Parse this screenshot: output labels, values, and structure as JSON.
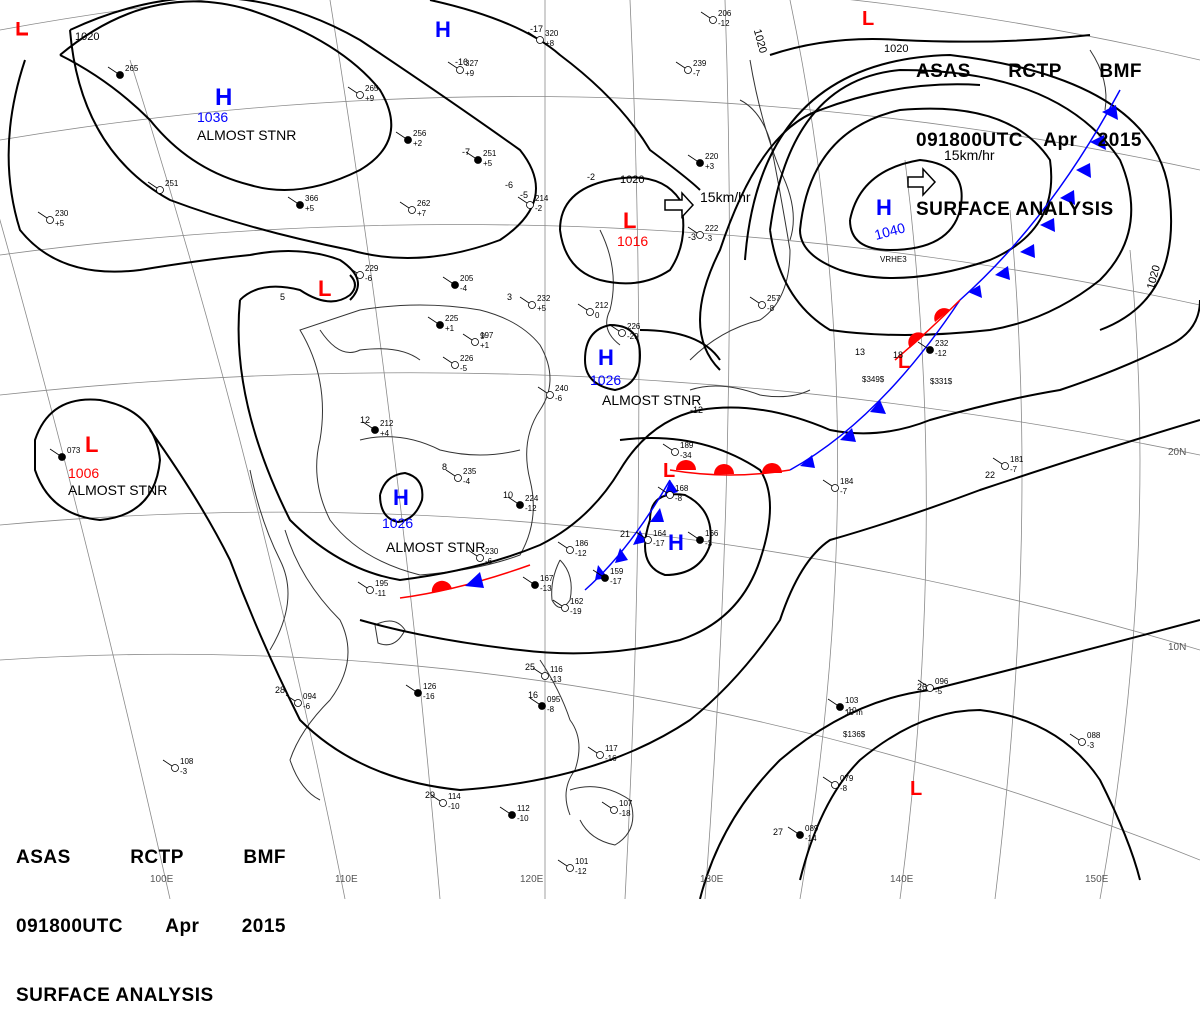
{
  "header": {
    "agency": "ASAS",
    "station": "RCTP",
    "office": "BMF",
    "datetime": "091800UTC",
    "month": "Apr",
    "year": "2015",
    "product": "SURFACE ANALYSIS"
  },
  "colors": {
    "high": "#0000ff",
    "low": "#ff0000",
    "isobar": "#000000",
    "grid": "#777777",
    "coast": "#333333",
    "cold_front": "#0000ff",
    "warm_front": "#ff0000"
  },
  "isobar_labels": {
    "a": "1020",
    "b": "1020",
    "c": "1020",
    "d": "1020",
    "e": "1020"
  },
  "lon_labels": [
    "100E",
    "110E",
    "120E",
    "130E",
    "140E",
    "150E"
  ],
  "lat_labels": [
    "20N",
    "10N"
  ],
  "systems": [
    {
      "type": "H",
      "pressure": "1036",
      "note": "ALMOST STNR"
    },
    {
      "type": "H",
      "pressure": "",
      "note": ""
    },
    {
      "type": "L",
      "pressure": "1016",
      "note": ""
    },
    {
      "type": "L",
      "pressure": "",
      "note": ""
    },
    {
      "type": "H",
      "pressure": "1040",
      "note": ""
    },
    {
      "type": "H",
      "pressure": "1026",
      "note": "ALMOST STNR"
    },
    {
      "type": "L",
      "pressure": "1006",
      "note": "ALMOST STNR"
    },
    {
      "type": "H",
      "pressure": "1026",
      "note": "ALMOST STNR"
    },
    {
      "type": "H",
      "pressure": "",
      "note": ""
    },
    {
      "type": "L",
      "pressure": "",
      "note": ""
    },
    {
      "type": "L",
      "pressure": "",
      "note": ""
    },
    {
      "type": "L",
      "pressure": "",
      "note": ""
    },
    {
      "type": "L",
      "pressure": "",
      "note": ""
    }
  ],
  "motion_labels": {
    "low_center": "15km/hr",
    "high_east": "15km/hr"
  },
  "stations": [
    {
      "p": "265",
      "t": ""
    },
    {
      "p": "251",
      "t": ""
    },
    {
      "p": "230",
      "t": "+5"
    },
    {
      "p": "366",
      "t": "+5"
    },
    {
      "p": "262",
      "t": "+7"
    },
    {
      "p": "265",
      "t": "+9"
    },
    {
      "p": "256",
      "t": "+2"
    },
    {
      "p": "327",
      "t": "+9"
    },
    {
      "p": "320",
      "t": "+8"
    },
    {
      "p": "251",
      "t": "+5"
    },
    {
      "p": "214",
      "t": "-2"
    },
    {
      "p": "229",
      "t": "-6"
    },
    {
      "p": "205",
      "t": "-4"
    },
    {
      "p": "232",
      "t": "+5"
    },
    {
      "p": "212",
      "t": "0"
    },
    {
      "p": "225",
      "t": "+1"
    },
    {
      "p": "197",
      "t": "+1"
    },
    {
      "p": "226",
      "t": "-5"
    },
    {
      "p": "212",
      "t": "+4"
    },
    {
      "p": "240",
      "t": "-6"
    },
    {
      "p": "235",
      "t": "-4"
    },
    {
      "p": "224",
      "t": "-12"
    },
    {
      "p": "230",
      "t": "-6"
    },
    {
      "p": "186",
      "t": "-12"
    },
    {
      "p": "167",
      "t": "-13"
    },
    {
      "p": "162",
      "t": "-19"
    },
    {
      "p": "195",
      "t": "-11"
    },
    {
      "p": "159",
      "t": "-17"
    },
    {
      "p": "164",
      "t": "-17"
    },
    {
      "p": "168",
      "t": "-8"
    },
    {
      "p": "166",
      "t": "-3"
    },
    {
      "p": "184",
      "t": "-7"
    },
    {
      "p": "181",
      "t": "-7"
    },
    {
      "p": "126",
      "t": "-16"
    },
    {
      "p": "094",
      "t": "-6"
    },
    {
      "p": "116",
      "t": "-13"
    },
    {
      "p": "095",
      "t": "-8"
    },
    {
      "p": "117",
      "t": "-16"
    },
    {
      "p": "114",
      "t": "-10"
    },
    {
      "p": "112",
      "t": "-10"
    },
    {
      "p": "107",
      "t": "-18"
    },
    {
      "p": "101",
      "t": "-12"
    },
    {
      "p": "103",
      "t": "-10"
    },
    {
      "p": "096",
      "t": "-5"
    },
    {
      "p": "079",
      "t": "-8"
    },
    {
      "p": "089",
      "t": "-14"
    },
    {
      "p": "088",
      "t": "-3"
    },
    {
      "p": "108",
      "t": "-3"
    },
    {
      "p": "220",
      "t": "+3"
    },
    {
      "p": "239",
      "t": "-7"
    },
    {
      "p": "222",
      "t": "-3"
    },
    {
      "p": "232",
      "t": "-12"
    },
    {
      "p": "226",
      "t": "-29"
    },
    {
      "p": "206",
      "t": "-12"
    },
    {
      "p": "073",
      "t": ""
    },
    {
      "p": "189",
      "t": "-34"
    },
    {
      "p": "257",
      "t": "-8"
    }
  ],
  "station_temps": [
    "-17",
    "-16",
    "-7",
    "-6",
    "-5",
    "-2",
    "13",
    "18",
    "21",
    "22",
    "25",
    "26",
    "27",
    "28",
    "29",
    "12",
    "10",
    "9",
    "8",
    "5",
    "3",
    "-3",
    "-12",
    "16"
  ],
  "misc_text": [
    "VRHE3",
    "$349$",
    "$331$",
    "$136$",
    "10 m"
  ]
}
